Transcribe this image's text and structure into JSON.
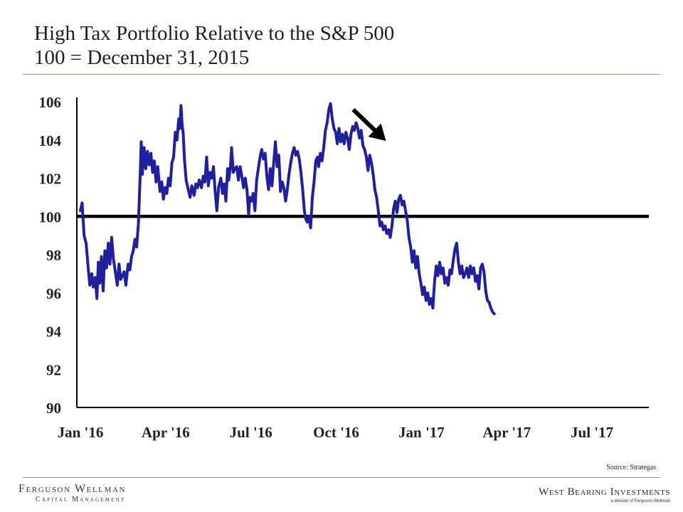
{
  "header": {
    "title_line1": "High Tax Portfolio Relative to the S&P 500",
    "title_line2": "100 = December 31, 2015"
  },
  "colors": {
    "series": "#1f1fa0",
    "baseline": "#000000",
    "rule": "#b08a78",
    "arrow": "#000000"
  },
  "chart_data": {
    "type": "line",
    "title": "High Tax Portfolio Relative to the S&P 500",
    "subtitle": "100 = December 31, 2015",
    "xlabel": "",
    "ylabel": "",
    "xlim": [
      0,
      20
    ],
    "ylim": [
      90,
      106
    ],
    "yticks": [
      90,
      92,
      94,
      96,
      98,
      100,
      102,
      104,
      106
    ],
    "xticks": [
      {
        "label": "Jan '16",
        "t": 0
      },
      {
        "label": "Apr '16",
        "t": 3
      },
      {
        "label": "Jul '16",
        "t": 6
      },
      {
        "label": "Oct '16",
        "t": 9
      },
      {
        "label": "Jan '17",
        "t": 12
      },
      {
        "label": "Apr '17",
        "t": 15
      },
      {
        "label": "Jul '17",
        "t": 18
      }
    ],
    "reference_line": {
      "y": 100
    },
    "annotation": {
      "type": "arrow",
      "target": {
        "t": 10.9,
        "y": 103.8
      }
    },
    "series": [
      {
        "name": "High Tax Portfolio",
        "points": [
          [
            0.0,
            100.3
          ],
          [
            0.06,
            100.7
          ],
          [
            0.13,
            99.0
          ],
          [
            0.2,
            98.6
          ],
          [
            0.28,
            97.2
          ],
          [
            0.33,
            96.4
          ],
          [
            0.4,
            97.0
          ],
          [
            0.45,
            96.3
          ],
          [
            0.52,
            96.8
          ],
          [
            0.58,
            95.7
          ],
          [
            0.63,
            97.6
          ],
          [
            0.68,
            96.5
          ],
          [
            0.74,
            97.9
          ],
          [
            0.8,
            96.1
          ],
          [
            0.86,
            98.2
          ],
          [
            0.92,
            97.3
          ],
          [
            0.98,
            98.6
          ],
          [
            1.04,
            97.5
          ],
          [
            1.1,
            98.9
          ],
          [
            1.16,
            97.8
          ],
          [
            1.22,
            97.2
          ],
          [
            1.3,
            96.4
          ],
          [
            1.36,
            97.5
          ],
          [
            1.42,
            96.7
          ],
          [
            1.48,
            96.9
          ],
          [
            1.54,
            97.1
          ],
          [
            1.6,
            96.4
          ],
          [
            1.68,
            97.5
          ],
          [
            1.74,
            97.2
          ],
          [
            1.8,
            97.9
          ],
          [
            1.86,
            98.2
          ],
          [
            1.92,
            98.8
          ],
          [
            1.98,
            98.4
          ],
          [
            2.04,
            99.6
          ],
          [
            2.1,
            102.0
          ],
          [
            2.14,
            103.9
          ],
          [
            2.18,
            102.2
          ],
          [
            2.24,
            103.6
          ],
          [
            2.3,
            102.5
          ],
          [
            2.36,
            103.4
          ],
          [
            2.42,
            102.7
          ],
          [
            2.48,
            103.3
          ],
          [
            2.54,
            102.3
          ],
          [
            2.6,
            102.9
          ],
          [
            2.66,
            101.8
          ],
          [
            2.72,
            102.6
          ],
          [
            2.8,
            101.3
          ],
          [
            2.86,
            101.8
          ],
          [
            2.92,
            100.9
          ],
          [
            2.98,
            101.5
          ],
          [
            3.04,
            101.2
          ],
          [
            3.1,
            102.0
          ],
          [
            3.16,
            101.6
          ],
          [
            3.22,
            102.8
          ],
          [
            3.28,
            103.1
          ],
          [
            3.34,
            104.4
          ],
          [
            3.4,
            104.0
          ],
          [
            3.46,
            105.1
          ],
          [
            3.5,
            104.6
          ],
          [
            3.54,
            105.8
          ],
          [
            3.58,
            104.8
          ],
          [
            3.62,
            104.3
          ],
          [
            3.66,
            103.0
          ],
          [
            3.72,
            101.9
          ],
          [
            3.78,
            101.5
          ],
          [
            3.86,
            101.0
          ],
          [
            3.92,
            101.6
          ],
          [
            4.0,
            101.1
          ],
          [
            4.06,
            101.7
          ],
          [
            4.12,
            101.5
          ],
          [
            4.18,
            101.9
          ],
          [
            4.26,
            101.5
          ],
          [
            4.32,
            102.1
          ],
          [
            4.38,
            101.8
          ],
          [
            4.44,
            103.1
          ],
          [
            4.5,
            101.6
          ],
          [
            4.56,
            102.3
          ],
          [
            4.62,
            102.0
          ],
          [
            4.68,
            102.6
          ],
          [
            4.74,
            101.3
          ],
          [
            4.8,
            100.3
          ],
          [
            4.86,
            101.5
          ],
          [
            4.94,
            102.0
          ],
          [
            5.0,
            101.2
          ],
          [
            5.06,
            101.7
          ],
          [
            5.12,
            100.8
          ],
          [
            5.18,
            102.5
          ],
          [
            5.22,
            101.9
          ],
          [
            5.28,
            102.6
          ],
          [
            5.32,
            103.6
          ],
          [
            5.38,
            102.3
          ],
          [
            5.44,
            102.5
          ],
          [
            5.5,
            102.6
          ],
          [
            5.56,
            101.9
          ],
          [
            5.62,
            102.6
          ],
          [
            5.68,
            102.1
          ],
          [
            5.74,
            101.5
          ],
          [
            5.8,
            102.0
          ],
          [
            5.86,
            101.4
          ],
          [
            5.92,
            100.1
          ],
          [
            5.96,
            101.0
          ],
          [
            6.02,
            100.8
          ],
          [
            6.08,
            101.2
          ],
          [
            6.14,
            100.3
          ],
          [
            6.2,
            101.9
          ],
          [
            6.26,
            102.5
          ],
          [
            6.32,
            103.1
          ],
          [
            6.38,
            103.5
          ],
          [
            6.44,
            103.0
          ],
          [
            6.5,
            103.3
          ],
          [
            6.56,
            102.1
          ],
          [
            6.62,
            101.4
          ],
          [
            6.68,
            102.5
          ],
          [
            6.74,
            101.6
          ],
          [
            6.8,
            102.8
          ],
          [
            6.86,
            103.9
          ],
          [
            6.92,
            102.6
          ],
          [
            6.98,
            103.2
          ],
          [
            7.04,
            101.3
          ],
          [
            7.1,
            101.8
          ],
          [
            7.16,
            101.5
          ],
          [
            7.22,
            100.8
          ],
          [
            7.28,
            101.4
          ],
          [
            7.34,
            102.2
          ],
          [
            7.4,
            102.8
          ],
          [
            7.46,
            103.3
          ],
          [
            7.52,
            103.6
          ],
          [
            7.58,
            103.2
          ],
          [
            7.64,
            103.4
          ],
          [
            7.7,
            103.0
          ],
          [
            7.76,
            102.3
          ],
          [
            7.82,
            101.4
          ],
          [
            7.88,
            100.3
          ],
          [
            7.92,
            99.9
          ],
          [
            7.98,
            99.7
          ],
          [
            8.04,
            100.0
          ],
          [
            8.1,
            99.4
          ],
          [
            8.16,
            101.0
          ],
          [
            8.22,
            101.8
          ],
          [
            8.28,
            102.9
          ],
          [
            8.34,
            103.1
          ],
          [
            8.38,
            102.6
          ],
          [
            8.44,
            103.3
          ],
          [
            8.5,
            102.9
          ],
          [
            8.56,
            103.6
          ],
          [
            8.62,
            104.5
          ],
          [
            8.68,
            104.9
          ],
          [
            8.74,
            105.6
          ],
          [
            8.8,
            105.9
          ],
          [
            8.86,
            105.1
          ],
          [
            8.92,
            104.6
          ],
          [
            8.98,
            104.4
          ],
          [
            9.04,
            103.8
          ],
          [
            9.1,
            104.6
          ],
          [
            9.16,
            103.9
          ],
          [
            9.22,
            104.3
          ],
          [
            9.28,
            103.8
          ],
          [
            9.34,
            104.4
          ],
          [
            9.4,
            104.1
          ],
          [
            9.46,
            103.5
          ],
          [
            9.52,
            104.3
          ],
          [
            9.58,
            104.7
          ],
          [
            9.64,
            104.5
          ],
          [
            9.7,
            104.9
          ],
          [
            9.76,
            104.6
          ],
          [
            9.82,
            104.1
          ],
          [
            9.88,
            104.5
          ],
          [
            9.94,
            103.7
          ],
          [
            10.0,
            103.5
          ],
          [
            10.06,
            103.1
          ],
          [
            10.12,
            102.4
          ],
          [
            10.18,
            103.2
          ],
          [
            10.24,
            102.8
          ],
          [
            10.3,
            102.2
          ],
          [
            10.36,
            101.4
          ],
          [
            10.42,
            101.0
          ],
          [
            10.48,
            100.3
          ],
          [
            10.54,
            99.5
          ],
          [
            10.6,
            99.7
          ],
          [
            10.66,
            99.3
          ],
          [
            10.72,
            99.5
          ],
          [
            10.78,
            99.1
          ],
          [
            10.84,
            99.3
          ],
          [
            10.9,
            98.9
          ],
          [
            10.96,
            99.5
          ],
          [
            11.02,
            100.4
          ],
          [
            11.08,
            100.8
          ],
          [
            11.14,
            100.2
          ],
          [
            11.2,
            100.9
          ],
          [
            11.26,
            101.1
          ],
          [
            11.32,
            100.6
          ],
          [
            11.38,
            100.8
          ],
          [
            11.44,
            100.3
          ],
          [
            11.5,
            99.8
          ],
          [
            11.56,
            98.9
          ],
          [
            11.62,
            98.4
          ],
          [
            11.68,
            97.6
          ],
          [
            11.74,
            98.2
          ],
          [
            11.8,
            97.3
          ],
          [
            11.86,
            97.9
          ],
          [
            11.92,
            97.0
          ],
          [
            11.98,
            96.5
          ],
          [
            12.04,
            95.9
          ],
          [
            12.1,
            96.3
          ],
          [
            12.16,
            95.6
          ],
          [
            12.22,
            96.0
          ],
          [
            12.28,
            95.4
          ],
          [
            12.34,
            95.7
          ],
          [
            12.4,
            95.2
          ],
          [
            12.46,
            96.6
          ],
          [
            12.52,
            97.4
          ],
          [
            12.58,
            96.9
          ],
          [
            12.64,
            97.6
          ],
          [
            12.7,
            97.0
          ],
          [
            12.76,
            97.3
          ],
          [
            12.82,
            96.5
          ],
          [
            12.88,
            96.8
          ],
          [
            12.94,
            96.4
          ],
          [
            13.0,
            97.2
          ],
          [
            13.06,
            97.0
          ],
          [
            13.12,
            97.7
          ],
          [
            13.18,
            98.3
          ],
          [
            13.24,
            98.6
          ],
          [
            13.3,
            97.6
          ],
          [
            13.36,
            97.0
          ],
          [
            13.42,
            97.4
          ],
          [
            13.48,
            96.8
          ],
          [
            13.54,
            97.0
          ],
          [
            13.6,
            97.3
          ],
          [
            13.66,
            96.8
          ],
          [
            13.72,
            97.4
          ],
          [
            13.78,
            97.0
          ],
          [
            13.84,
            97.3
          ],
          [
            13.9,
            96.6
          ],
          [
            13.96,
            96.9
          ],
          [
            14.02,
            96.2
          ],
          [
            14.08,
            97.3
          ],
          [
            14.14,
            97.5
          ],
          [
            14.2,
            97.1
          ],
          [
            14.26,
            96.1
          ],
          [
            14.32,
            95.6
          ],
          [
            14.38,
            95.5
          ],
          [
            14.44,
            95.2
          ],
          [
            14.5,
            95.0
          ],
          [
            14.56,
            94.9
          ]
        ]
      }
    ]
  },
  "footer": {
    "source": "Source: Strategas",
    "left_logo_line1": "Ferguson Wellman",
    "left_logo_line2": "Capital Management",
    "right_logo_line1": "West Bearing Investments",
    "right_logo_line2": "a division of Ferguson Wellman"
  }
}
